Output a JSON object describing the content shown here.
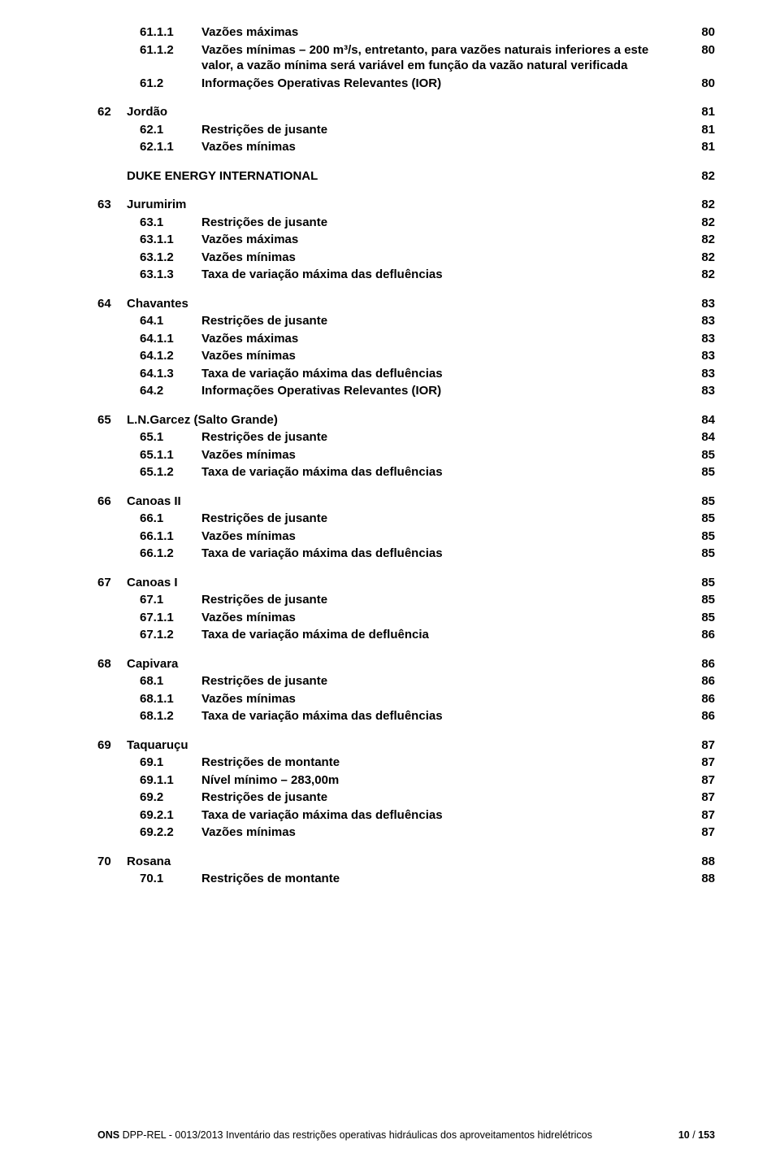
{
  "toc": [
    {
      "type": "entry",
      "level": 2,
      "num": "61.1.1",
      "label": "Vazões máximas",
      "page": "80"
    },
    {
      "type": "entry",
      "level": 2,
      "num": "61.1.2",
      "label": "Vazões mínimas – 200 m³/s, entretanto, para vazões naturais inferiores a este valor, a vazão mínima será variável em função da vazão natural verificada",
      "page": "80"
    },
    {
      "type": "entry",
      "level": 1,
      "num": "61.2",
      "label": "Informações Operativas Relevantes (IOR)",
      "page": "80"
    },
    {
      "type": "gap"
    },
    {
      "type": "entry",
      "level": 0,
      "num": "62",
      "label": "Jordão",
      "page": "81"
    },
    {
      "type": "entry",
      "level": 1,
      "num": "62.1",
      "label": "Restrições de jusante",
      "page": "81"
    },
    {
      "type": "entry",
      "level": 2,
      "num": "62.1.1",
      "label": "Vazões mínimas",
      "page": "81"
    },
    {
      "type": "gap"
    },
    {
      "type": "entry",
      "level": 0,
      "num": "",
      "label": "DUKE ENERGY INTERNATIONAL",
      "page": "82"
    },
    {
      "type": "gap"
    },
    {
      "type": "entry",
      "level": 0,
      "num": "63",
      "label": "Jurumirim",
      "page": "82"
    },
    {
      "type": "entry",
      "level": 1,
      "num": "63.1",
      "label": "Restrições de jusante",
      "page": "82"
    },
    {
      "type": "entry",
      "level": 2,
      "num": "63.1.1",
      "label": "Vazões máximas",
      "page": "82"
    },
    {
      "type": "entry",
      "level": 2,
      "num": "63.1.2",
      "label": "Vazões mínimas",
      "page": "82"
    },
    {
      "type": "entry",
      "level": 2,
      "num": "63.1.3",
      "label": "Taxa de variação máxima das defluências",
      "page": "82"
    },
    {
      "type": "gap"
    },
    {
      "type": "entry",
      "level": 0,
      "num": "64",
      "label": "Chavantes",
      "page": "83"
    },
    {
      "type": "entry",
      "level": 1,
      "num": "64.1",
      "label": "Restrições de jusante",
      "page": "83"
    },
    {
      "type": "entry",
      "level": 2,
      "num": "64.1.1",
      "label": "Vazões máximas",
      "page": "83"
    },
    {
      "type": "entry",
      "level": 2,
      "num": "64.1.2",
      "label": "Vazões mínimas",
      "page": "83"
    },
    {
      "type": "entry",
      "level": 2,
      "num": "64.1.3",
      "label": "Taxa de variação máxima das defluências",
      "page": "83"
    },
    {
      "type": "entry",
      "level": 1,
      "num": "64.2",
      "label": "Informações Operativas Relevantes (IOR)",
      "page": "83"
    },
    {
      "type": "gap"
    },
    {
      "type": "entry",
      "level": 0,
      "num": "65",
      "label": "L.N.Garcez (Salto Grande)",
      "page": "84"
    },
    {
      "type": "entry",
      "level": 1,
      "num": "65.1",
      "label": "Restrições de jusante",
      "page": "84"
    },
    {
      "type": "entry",
      "level": 2,
      "num": "65.1.1",
      "label": "Vazões mínimas",
      "page": "85"
    },
    {
      "type": "entry",
      "level": 2,
      "num": "65.1.2",
      "label": "Taxa de variação máxima das defluências",
      "page": "85"
    },
    {
      "type": "gap"
    },
    {
      "type": "entry",
      "level": 0,
      "num": "66",
      "label": "Canoas II",
      "page": "85"
    },
    {
      "type": "entry",
      "level": 1,
      "num": "66.1",
      "label": "Restrições de jusante",
      "page": "85"
    },
    {
      "type": "entry",
      "level": 2,
      "num": "66.1.1",
      "label": "Vazões mínimas",
      "page": "85"
    },
    {
      "type": "entry",
      "level": 2,
      "num": "66.1.2",
      "label": "Taxa de variação máxima das defluências",
      "page": "85"
    },
    {
      "type": "gap"
    },
    {
      "type": "entry",
      "level": 0,
      "num": "67",
      "label": "Canoas I",
      "page": "85"
    },
    {
      "type": "entry",
      "level": 1,
      "num": "67.1",
      "label": "Restrições de jusante",
      "page": "85"
    },
    {
      "type": "entry",
      "level": 2,
      "num": "67.1.1",
      "label": "Vazões mínimas",
      "page": "85"
    },
    {
      "type": "entry",
      "level": 2,
      "num": "67.1.2",
      "label": "Taxa de variação máxima de defluência",
      "page": "86"
    },
    {
      "type": "gap"
    },
    {
      "type": "entry",
      "level": 0,
      "num": "68",
      "label": "Capivara",
      "page": "86"
    },
    {
      "type": "entry",
      "level": 1,
      "num": "68.1",
      "label": "Restrições de jusante",
      "page": "86"
    },
    {
      "type": "entry",
      "level": 2,
      "num": "68.1.1",
      "label": "Vazões mínimas",
      "page": "86"
    },
    {
      "type": "entry",
      "level": 2,
      "num": "68.1.2",
      "label": "Taxa de variação máxima das defluências",
      "page": "86"
    },
    {
      "type": "gap"
    },
    {
      "type": "entry",
      "level": 0,
      "num": "69",
      "label": "Taquaruçu",
      "page": "87"
    },
    {
      "type": "entry",
      "level": 1,
      "num": "69.1",
      "label": "Restrições de montante",
      "page": "87"
    },
    {
      "type": "entry",
      "level": 2,
      "num": "69.1.1",
      "label": "Nível mínimo – 283,00m",
      "page": "87"
    },
    {
      "type": "entry",
      "level": 1,
      "num": "69.2",
      "label": "Restrições de jusante",
      "page": "87"
    },
    {
      "type": "entry",
      "level": 2,
      "num": "69.2.1",
      "label": "Taxa de variação máxima das defluências",
      "page": "87"
    },
    {
      "type": "entry",
      "level": 2,
      "num": "69.2.2",
      "label": "Vazões mínimas",
      "page": "87"
    },
    {
      "type": "gap"
    },
    {
      "type": "entry",
      "level": 0,
      "num": "70",
      "label": "Rosana",
      "page": "88"
    },
    {
      "type": "entry",
      "level": 1,
      "num": "70.1",
      "label": "Restrições de montante",
      "page": "88"
    }
  ],
  "footer": {
    "ons": "ONS",
    "title": "DPP-REL - 0013/2013 Inventário das restrições operativas hidráulicas dos aproveitamentos hidrelétricos",
    "page_current": "10",
    "page_sep": " / ",
    "page_total": "153"
  }
}
